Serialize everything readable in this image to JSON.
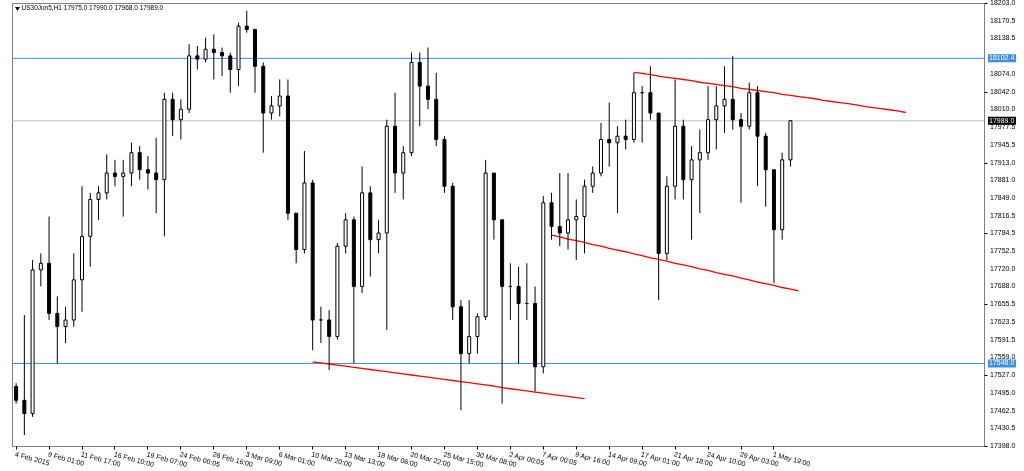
{
  "chart_data": {
    "type": "candlestick",
    "title": "US30Jun5,H1 17975.0 17990.0 17968.0 17989.0",
    "color": "#000000",
    "categories": [
      "4 Feb 2015",
      null,
      null,
      null,
      "9 Feb 01:00",
      null,
      null,
      null,
      "11 Feb 17:00",
      null,
      null,
      null,
      "16 Feb 10:00",
      null,
      null,
      null,
      "19 Feb 07:00",
      null,
      null,
      null,
      "24 Feb 00:05",
      null,
      null,
      null,
      "26 Feb 16:00",
      null,
      null,
      null,
      "3 Mar 09:00",
      null,
      null,
      null,
      "6 Mar 01:00",
      null,
      null,
      null,
      "10 Mar 20:00",
      null,
      null,
      null,
      "13 Mar 13:00",
      null,
      null,
      null,
      "18 Mar 06:00",
      null,
      null,
      null,
      "20 Mar 22:00",
      null,
      null,
      null,
      "25 Mar 15:00",
      null,
      null,
      null,
      "30 Mar 08:00",
      null,
      null,
      null,
      "2 Apr 00:05",
      null,
      null,
      null,
      "7 Apr 00:05",
      null,
      null,
      null,
      "9 Apr 16:00",
      null,
      null,
      null,
      "14 Apr 09:00",
      null,
      null,
      null,
      "17 Apr 01:00",
      null,
      null,
      null,
      "21 Apr 18:00",
      null,
      null,
      null,
      "24 Apr 10:00",
      null,
      null,
      null,
      "29 Apr 03:00",
      null,
      null,
      null,
      "1 May 19:00",
      null,
      null,
      null,
      null,
      null,
      null,
      null,
      null,
      null,
      null,
      null,
      null,
      null,
      null,
      null,
      null,
      null,
      null,
      null,
      null,
      null,
      null,
      null,
      null,
      null
    ],
    "ohlc": [
      [
        17506,
        17512,
        17475,
        17481
      ],
      [
        17481,
        17636,
        17418,
        17457
      ],
      [
        17457,
        17736,
        17451,
        17718
      ],
      [
        17718,
        17748,
        17688,
        17730
      ],
      [
        17730,
        17815,
        17627,
        17639
      ],
      [
        17639,
        17670,
        17548,
        17615
      ],
      [
        17615,
        17651,
        17585,
        17627
      ],
      [
        17627,
        17748,
        17615,
        17700
      ],
      [
        17700,
        17870,
        17642,
        17779
      ],
      [
        17779,
        17858,
        17724,
        17846
      ],
      [
        17846,
        17870,
        17809,
        17858
      ],
      [
        17858,
        17928,
        17846,
        17894
      ],
      [
        17894,
        17918,
        17870,
        17888
      ],
      [
        17888,
        17918,
        17815,
        17894
      ],
      [
        17894,
        17949,
        17870,
        17931
      ],
      [
        17931,
        17943,
        17882,
        17900
      ],
      [
        17900,
        17925,
        17864,
        17894
      ],
      [
        17894,
        17958,
        17821,
        17882
      ],
      [
        17882,
        18040,
        17779,
        18028
      ],
      [
        18028,
        18040,
        17961,
        17991
      ],
      [
        17991,
        18028,
        17955,
        18010
      ],
      [
        18010,
        18128,
        18003,
        18107
      ],
      [
        18107,
        18125,
        18082,
        18101
      ],
      [
        18101,
        18140,
        18095,
        18119
      ],
      [
        18119,
        18146,
        18064,
        18113
      ],
      [
        18113,
        18122,
        18070,
        18107
      ],
      [
        18107,
        18113,
        18040,
        18082
      ],
      [
        18082,
        18167,
        18052,
        18161
      ],
      [
        18161,
        18189,
        18149,
        18155
      ],
      [
        18155,
        18155,
        18040,
        18088
      ],
      [
        18088,
        18095,
        17931,
        18003
      ],
      [
        18003,
        18034,
        17991,
        18016
      ],
      [
        18016,
        18064,
        17997,
        18034
      ],
      [
        18034,
        18064,
        17809,
        17821
      ],
      [
        17821,
        17821,
        17730,
        17755
      ],
      [
        17755,
        17934,
        17748,
        17876
      ],
      [
        17876,
        17882,
        17572,
        17627
      ],
      [
        17627,
        17651,
        17585,
        17627
      ],
      [
        17627,
        17645,
        17536,
        17597
      ],
      [
        17597,
        17767,
        17591,
        17761
      ],
      [
        17761,
        17821,
        17748,
        17809
      ],
      [
        17809,
        17815,
        17548,
        17688
      ],
      [
        17688,
        17906,
        17676,
        17858
      ],
      [
        17858,
        17870,
        17706,
        17773
      ],
      [
        17773,
        17809,
        17748,
        17785
      ],
      [
        17785,
        17991,
        17609,
        17979
      ],
      [
        17979,
        18040,
        17858,
        17894
      ],
      [
        17894,
        17943,
        17846,
        17931
      ],
      [
        17931,
        18113,
        17925,
        18095
      ],
      [
        18095,
        18113,
        17979,
        18052
      ],
      [
        18052,
        18122,
        18010,
        18028
      ],
      [
        18028,
        18076,
        17943,
        17955
      ],
      [
        17955,
        17961,
        17858,
        17870
      ],
      [
        17870,
        17876,
        17627,
        17651
      ],
      [
        17651,
        17663,
        17463,
        17566
      ],
      [
        17566,
        17663,
        17548,
        17597
      ],
      [
        17597,
        17639,
        17566,
        17633
      ],
      [
        17633,
        17918,
        17627,
        17894
      ],
      [
        17894,
        17894,
        17773,
        17809
      ],
      [
        17809,
        17809,
        17475,
        17688
      ],
      [
        17688,
        17730,
        17627,
        17688
      ],
      [
        17688,
        17724,
        17548,
        17657
      ],
      [
        17657,
        17730,
        17627,
        17657
      ],
      [
        17657,
        17688,
        17497,
        17542
      ],
      [
        17542,
        17852,
        17530,
        17840
      ],
      [
        17840,
        17858,
        17773,
        17797
      ],
      [
        17797,
        17894,
        17761,
        17785
      ],
      [
        17785,
        17894,
        17755,
        17809
      ],
      [
        17809,
        17846,
        17736,
        17815
      ],
      [
        17815,
        17882,
        17748,
        17870
      ],
      [
        17870,
        17906,
        17858,
        17894
      ],
      [
        17894,
        17985,
        17888,
        17955
      ],
      [
        17955,
        18022,
        17906,
        17949
      ],
      [
        17949,
        17979,
        17821,
        17961
      ],
      [
        17961,
        17991,
        17937,
        17955
      ],
      [
        17955,
        18076,
        17949,
        18040
      ],
      [
        18040,
        18052,
        17949,
        18040
      ],
      [
        18040,
        18088,
        17991,
        18003
      ],
      [
        18003,
        18003,
        17663,
        17748
      ],
      [
        17748,
        17888,
        17736,
        17870
      ],
      [
        17870,
        18064,
        17846,
        17979
      ],
      [
        17979,
        17991,
        17846,
        17882
      ],
      [
        17882,
        17943,
        17773,
        17918
      ],
      [
        17918,
        17973,
        17821,
        17931
      ],
      [
        17931,
        18052,
        17918,
        17991
      ],
      [
        17991,
        18052,
        17937,
        18016
      ],
      [
        18016,
        18088,
        17967,
        18028
      ],
      [
        18028,
        18107,
        17973,
        17991
      ],
      [
        17991,
        18003,
        17840,
        17979
      ],
      [
        17979,
        18058,
        17973,
        18040
      ],
      [
        18040,
        18052,
        17870,
        17961
      ],
      [
        17961,
        17967,
        17833,
        17900
      ],
      [
        17900,
        17900,
        17694,
        17791
      ],
      [
        17791,
        17931,
        17773,
        17918
      ],
      [
        17918,
        17990,
        17906,
        17989
      ],
      null,
      null,
      null,
      null,
      null,
      null,
      null,
      null,
      null,
      null,
      null,
      null,
      null,
      null,
      null,
      null,
      null,
      null,
      null,
      null,
      null,
      null,
      null
    ],
    "series": [
      {
        "type": "line",
        "color": "#ff0000",
        "values": [
          null,
          null,
          null,
          null,
          null,
          null,
          null,
          null,
          null,
          null,
          null,
          null,
          null,
          null,
          null,
          null,
          null,
          null,
          null,
          null,
          null,
          null,
          null,
          null,
          null,
          null,
          null,
          null,
          null,
          null,
          null,
          null,
          null,
          null,
          null,
          null,
          17551,
          17549,
          17547,
          17545,
          17543,
          17541,
          17539,
          17537,
          17535,
          17533,
          17531,
          17529,
          17527,
          17525,
          17523,
          17521,
          17519,
          17517,
          17515,
          17513,
          17511,
          17509,
          17507,
          17504,
          17502,
          17500,
          17498,
          17496,
          17494,
          17492,
          17490,
          17488,
          17486,
          17484,
          null,
          null,
          null,
          null,
          null,
          null,
          null,
          null,
          null,
          null,
          null,
          null,
          null,
          null,
          null,
          null,
          null,
          null,
          null,
          null,
          null,
          null,
          null,
          null,
          null,
          null,
          null,
          null,
          null,
          null,
          null,
          null,
          null,
          null,
          null,
          null,
          null,
          null,
          null,
          null,
          null,
          null,
          null,
          null,
          null,
          null,
          null,
          null
        ]
      },
      {
        "type": "line",
        "color": "#ff0000",
        "values": [
          null,
          null,
          null,
          null,
          null,
          null,
          null,
          null,
          null,
          null,
          null,
          null,
          null,
          null,
          null,
          null,
          null,
          null,
          null,
          null,
          null,
          null,
          null,
          null,
          null,
          null,
          null,
          null,
          null,
          null,
          null,
          null,
          null,
          null,
          null,
          null,
          null,
          null,
          null,
          null,
          null,
          null,
          null,
          null,
          null,
          null,
          null,
          null,
          null,
          null,
          null,
          null,
          null,
          null,
          null,
          null,
          null,
          null,
          null,
          null,
          null,
          null,
          null,
          null,
          null,
          17781,
          17778,
          17774,
          17771,
          17768,
          17764,
          17761,
          17757,
          17754,
          17751,
          17747,
          17744,
          17740,
          17737,
          17734,
          17730,
          17727,
          17724,
          17720,
          17717,
          17713,
          17710,
          17707,
          17703,
          17700,
          17696,
          17693,
          17690,
          17686,
          17683,
          17680,
          null,
          null,
          null,
          null,
          null,
          null,
          null,
          null,
          null,
          null,
          null,
          null,
          null,
          null,
          null,
          null,
          null,
          null,
          null,
          null,
          null,
          null
        ]
      },
      {
        "type": "line",
        "color": "#ff0000",
        "values": [
          null,
          null,
          null,
          null,
          null,
          null,
          null,
          null,
          null,
          null,
          null,
          null,
          null,
          null,
          null,
          null,
          null,
          null,
          null,
          null,
          null,
          null,
          null,
          null,
          null,
          null,
          null,
          null,
          null,
          null,
          null,
          null,
          null,
          null,
          null,
          null,
          null,
          null,
          null,
          null,
          null,
          null,
          null,
          null,
          null,
          null,
          null,
          null,
          null,
          null,
          null,
          null,
          null,
          null,
          null,
          null,
          null,
          null,
          null,
          null,
          null,
          null,
          null,
          null,
          null,
          null,
          null,
          null,
          null,
          null,
          null,
          null,
          null,
          null,
          null,
          18077,
          18075,
          18073,
          18070,
          18068,
          18066,
          18064,
          18062,
          18059,
          18057,
          18055,
          18053,
          18051,
          18048,
          18046,
          18044,
          18042,
          18040,
          18037,
          18035,
          18033,
          18031,
          18029,
          18026,
          18024,
          18022,
          18020,
          18018,
          18015,
          18013,
          18011,
          18009,
          18007,
          18004,
          null,
          null,
          null,
          null,
          null,
          null,
          null,
          null,
          null
        ]
      }
    ],
    "ref_lines": [
      {
        "axis": "y",
        "value": 18102.4,
        "label": "18102.4",
        "color": "#3d8ee6"
      },
      {
        "axis": "y",
        "value": 17548.0,
        "label": "17548.0",
        "color": "#3d8ee6"
      },
      {
        "axis": "y",
        "value": 17989.0,
        "label": "17989.0",
        "color": "#c0c0c0"
      }
    ],
    "ylim": [
      17398.0,
      18203.0
    ],
    "yticks": [
      {
        "value": 17398,
        "label": "17398.0"
      },
      {
        "value": 17430.5,
        "label": "17430.5"
      },
      {
        "value": 17462.5,
        "label": "17462.5"
      },
      {
        "value": 17495,
        "label": "17495.0"
      },
      {
        "value": 17527,
        "label": "17527.0"
      },
      {
        "value": 17559,
        "label": "17559.0"
      },
      {
        "value": 17591.5,
        "label": "17591.5"
      },
      {
        "value": 17623.5,
        "label": "17623.5"
      },
      {
        "value": 17655.5,
        "label": "17655.5"
      },
      {
        "value": 17688,
        "label": "17688.0"
      },
      {
        "value": 17720,
        "label": "17720.0"
      },
      {
        "value": 17752.5,
        "label": "17752.5"
      },
      {
        "value": 17784.5,
        "label": "17784.5"
      },
      {
        "value": 17816.5,
        "label": "17816.5"
      },
      {
        "value": 17849,
        "label": "17849.0"
      },
      {
        "value": 17881,
        "label": "17881.0"
      },
      {
        "value": 17913,
        "label": "17913.0"
      },
      {
        "value": 17945.5,
        "label": "17945.5"
      },
      {
        "value": 17977.5,
        "label": "17977.5"
      },
      {
        "value": 18010,
        "label": "18010.0"
      },
      {
        "value": 18042,
        "label": "18042.0"
      },
      {
        "value": 18074,
        "label": "18074.0"
      },
      {
        "value": 18138.5,
        "label": "18138.5"
      },
      {
        "value": 18170.5,
        "label": "18170.5"
      },
      {
        "value": 18203,
        "label": "18203.0"
      }
    ],
    "grid": false
  }
}
